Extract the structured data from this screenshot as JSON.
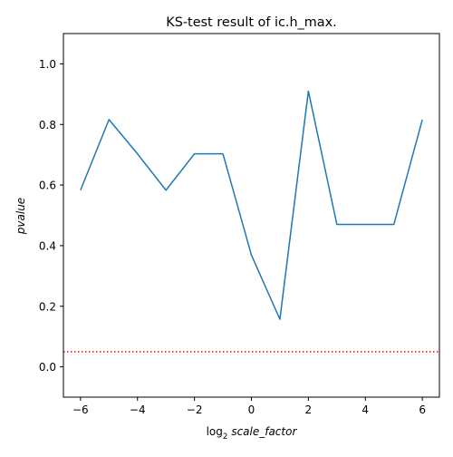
{
  "chart_data": {
    "type": "line",
    "title": "KS-test result of ic.h_max.",
    "xlabel_prefix": "log",
    "xlabel_subscript": "2",
    "xlabel_var": "scale_factor",
    "ylabel": "pvalue",
    "xlim": [
      -6.6,
      6.6
    ],
    "ylim": [
      -0.1,
      1.1
    ],
    "xticks": [
      -6,
      -4,
      -2,
      0,
      2,
      4,
      6
    ],
    "xtick_labels": [
      "−6",
      "−4",
      "−2",
      "0",
      "2",
      "4",
      "6"
    ],
    "yticks": [
      0.0,
      0.2,
      0.4,
      0.6,
      0.8,
      1.0
    ],
    "ytick_labels": [
      "0.0",
      "0.2",
      "0.4",
      "0.6",
      "0.8",
      "1.0"
    ],
    "grid": false,
    "series": [
      {
        "x": [
          -6,
          -5,
          -4,
          -3,
          -2,
          -1,
          0,
          1,
          2,
          3,
          4,
          5,
          6
        ],
        "y": [
          0.583,
          0.816,
          0.703,
          0.583,
          0.703,
          0.703,
          0.369,
          0.157,
          0.91,
          0.47,
          0.47,
          0.47,
          0.816
        ],
        "color": "#1f77b4"
      }
    ],
    "reference_line": {
      "y": 0.05,
      "color": "#ff0000",
      "style": "dotted"
    }
  }
}
